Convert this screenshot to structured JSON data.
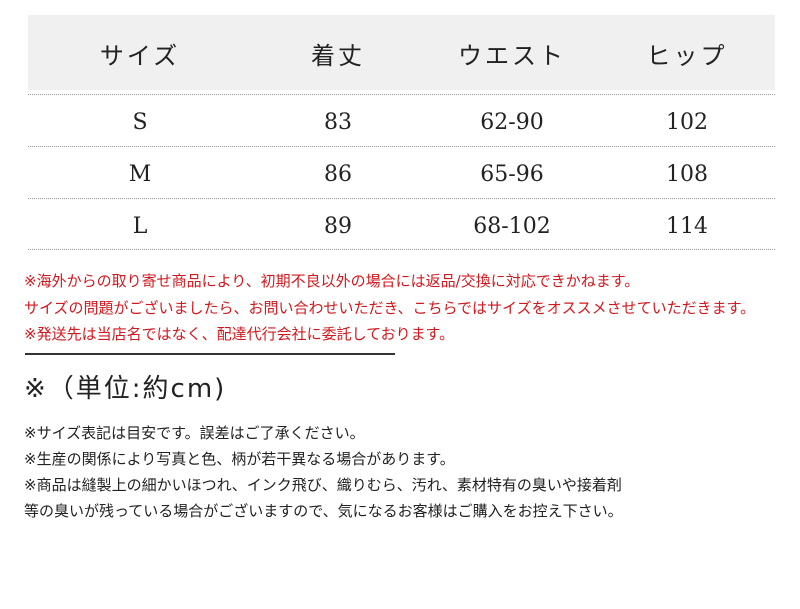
{
  "table": {
    "headers": [
      "サイズ",
      "着丈",
      "ウエスト",
      "ヒップ"
    ],
    "rows": [
      [
        "S",
        "83",
        "62-90",
        "102"
      ],
      [
        "M",
        "86",
        "65-96",
        "108"
      ],
      [
        "L",
        "89",
        "68-102",
        "114"
      ]
    ]
  },
  "warnings": [
    "※海外からの取り寄せ商品により、初期不良以外の場合には返品/交換に対応できかねます。",
    "サイズの問題がございましたら、お問い合わせいただき、こちらではサイズをオススメさせていただきます。",
    "※発送先は当店名ではなく、配達代行会社に委託しております。"
  ],
  "unit_label": "※（単位:約cm)",
  "notes": [
    "※サイズ表記は目安です。誤差はご了承ください。",
    "※生産の関係により写真と色、柄が若干異なる場合があります。",
    "※商品は縫製上の細かいほつれ、インク飛び、織りむら、汚れ、素材特有の臭いや接着剤",
    "等の臭いが残っている場合がございますので、気になるお客様はご購入をお控え下さい。"
  ],
  "colors": {
    "warning": "#d0191f",
    "header_bg": "#f0f0f0"
  }
}
